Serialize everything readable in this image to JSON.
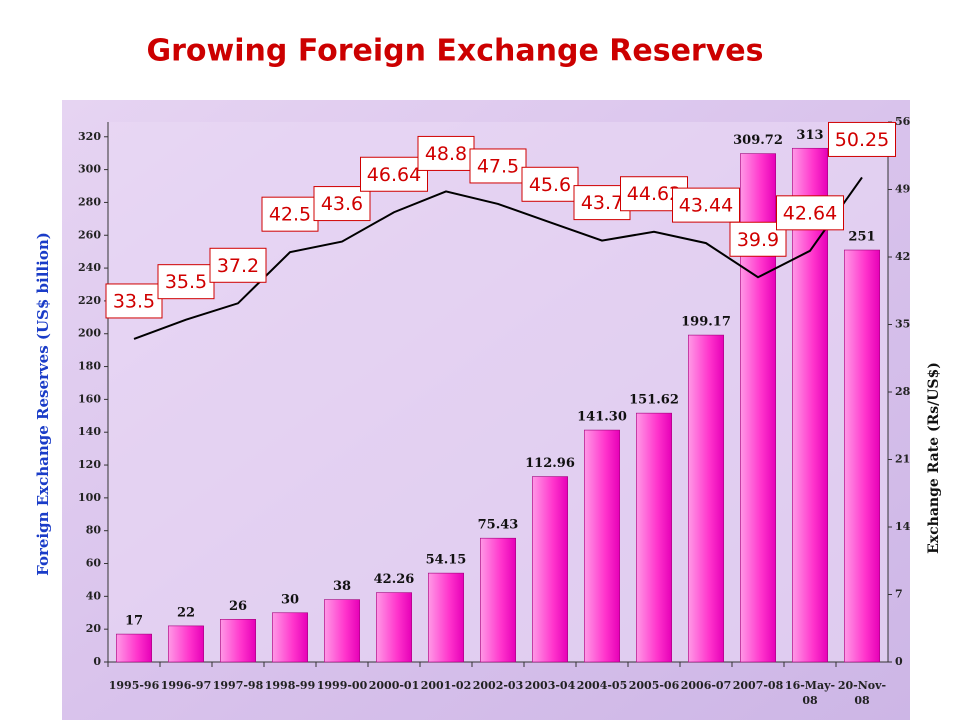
{
  "chart_data": {
    "type": "bar",
    "title": "Growing Foreign Exchange Reserves",
    "y_label": "Foreign Exchange Reserves (US$ billion)",
    "y2_label": "Exchange Rate (Rs/US$)",
    "categories": [
      "1995-96",
      "1996-97",
      "1997-98",
      "1998-99",
      "1999-00",
      "2000-01",
      "2001-02",
      "2002-03",
      "2003-04",
      "2004-05",
      "2005-06",
      "2006-07",
      "2007-08",
      "16-May-08",
      "20-Nov-08"
    ],
    "series": [
      {
        "name": "Foreign Exchange Reserves",
        "type": "bar",
        "color": "#ff33cc",
        "values": [
          17,
          22,
          26,
          30,
          38,
          42.26,
          54.15,
          75.43,
          112.96,
          141.3,
          151.62,
          199.17,
          309.72,
          313,
          251
        ],
        "value_labels": [
          "17",
          "22",
          "26",
          "30",
          "38",
          "42.26",
          "54.15",
          "75.43",
          "112.96",
          "141.30",
          "151.62",
          "199.17",
          "309.72",
          "313",
          "251"
        ]
      },
      {
        "name": "Exchange Rate",
        "type": "line",
        "axis": "y2",
        "color": "#000000",
        "values": [
          33.5,
          35.5,
          37.2,
          42.5,
          43.6,
          46.64,
          48.8,
          47.5,
          45.6,
          43.7,
          44.62,
          43.44,
          39.9,
          42.64,
          50.25
        ]
      }
    ],
    "ylim": [
      0,
      329
    ],
    "yticks": [
      0,
      20,
      40,
      60,
      80,
      100,
      120,
      140,
      160,
      180,
      200,
      220,
      240,
      260,
      280,
      300,
      320
    ],
    "y2lim": [
      0,
      56
    ],
    "y2ticks": [
      0,
      7,
      14,
      21,
      28,
      35,
      42,
      49,
      56
    ]
  }
}
